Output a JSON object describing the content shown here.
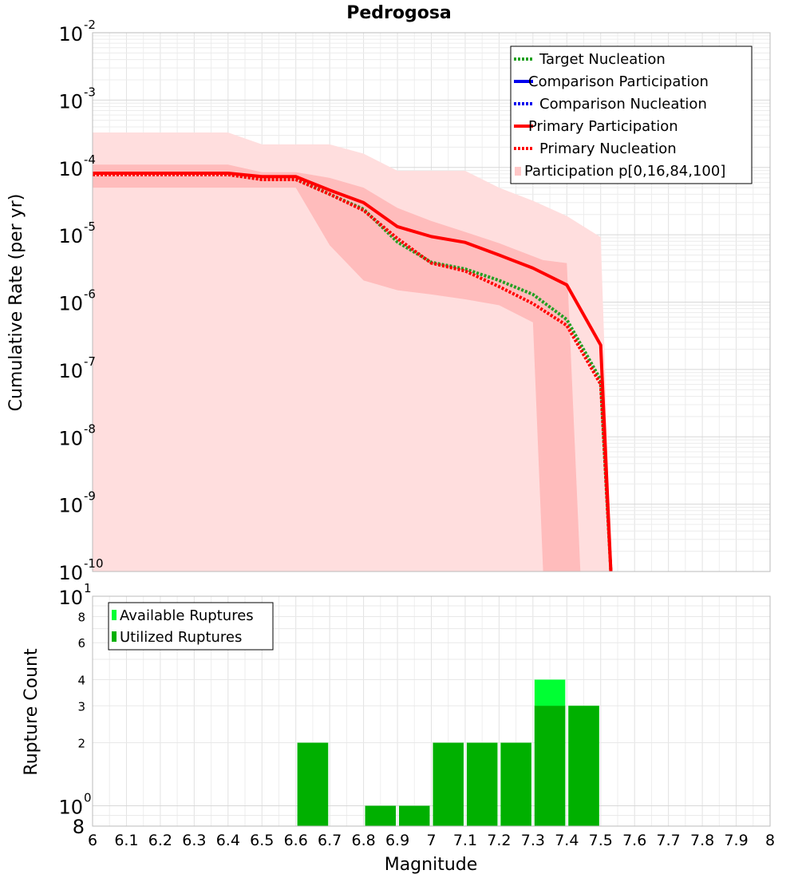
{
  "chart_data": [
    {
      "type": "line",
      "title": "Pedrogosa",
      "ylabel": "Cumulative Rate (per yr)",
      "yscale": "log",
      "ylim": [
        1e-10,
        0.01
      ],
      "xlim": [
        6,
        8
      ],
      "y_tick_labels": [
        {
          "value": 0.01,
          "base": "10",
          "exp": "-2"
        },
        {
          "value": 0.001,
          "base": "10",
          "exp": "-3"
        },
        {
          "value": 0.0001,
          "base": "10",
          "exp": "-4"
        },
        {
          "value": 1e-05,
          "base": "10",
          "exp": "-5"
        },
        {
          "value": 1e-06,
          "base": "10",
          "exp": "-6"
        },
        {
          "value": 1e-07,
          "base": "10",
          "exp": "-7"
        },
        {
          "value": 1e-08,
          "base": "10",
          "exp": "-8"
        },
        {
          "value": 1e-09,
          "base": "10",
          "exp": "-9"
        },
        {
          "value": 1e-10,
          "base": "10",
          "exp": "-10"
        }
      ],
      "legend_position": "top-right",
      "bands": [
        {
          "name": "Participation p[0,16,84,100] outer",
          "color": "#ffdede",
          "x": [
            6,
            6.4,
            6.5,
            6.6,
            6.7,
            6.8,
            6.9,
            7.0,
            7.1,
            7.2,
            7.3,
            7.4,
            7.5,
            7.51,
            7.53
          ],
          "low": [
            1e-10,
            1e-10,
            1e-10,
            1e-10,
            1e-10,
            1e-10,
            1e-10,
            1e-10,
            1e-10,
            1e-10,
            1e-10,
            1e-10,
            1e-10,
            1e-10,
            1e-10
          ],
          "high": [
            0.00033,
            0.00033,
            0.00022,
            0.00022,
            0.00022,
            0.00016,
            8.9e-05,
            8.9e-05,
            8.9e-05,
            5e-05,
            3.2e-05,
            1.9e-05,
            9.2e-06,
            3e-07,
            1e-10
          ]
        },
        {
          "name": "Participation p[0,16,84,100] inner",
          "color": "#ffbcbc",
          "x": [
            6,
            6.4,
            6.5,
            6.6,
            6.7,
            6.8,
            6.9,
            7.0,
            7.1,
            7.2,
            7.3,
            7.33,
            7.4,
            7.44
          ],
          "low": [
            5e-05,
            5e-05,
            5e-05,
            5e-05,
            7e-06,
            2.1e-06,
            1.5e-06,
            1.3e-06,
            1.1e-06,
            9e-07,
            5e-07,
            1e-10,
            1e-10,
            1e-10
          ],
          "high": [
            0.00011,
            0.00011,
            8.5e-05,
            8.5e-05,
            7e-05,
            5e-05,
            2.5e-05,
            1.6e-05,
            1.1e-05,
            7.5e-06,
            4.8e-06,
            4.2e-06,
            3.8e-06,
            1e-10
          ]
        }
      ],
      "series": [
        {
          "name": "Target Nucleation",
          "color": "#22a022",
          "style": "dotted",
          "x": [
            6,
            6.4,
            6.5,
            6.6,
            6.7,
            6.8,
            6.9,
            7.0,
            7.1,
            7.2,
            7.3,
            7.4,
            7.5,
            7.53
          ],
          "values": [
            8e-05,
            8e-05,
            6.8e-05,
            6.8e-05,
            4e-05,
            2.4e-05,
            7.8e-06,
            3.9e-06,
            3.1e-06,
            2.1e-06,
            1.3e-06,
            5.5e-07,
            7e-08,
            1e-10
          ]
        },
        {
          "name": "Comparison Participation",
          "color": "#0000ee",
          "style": "solid",
          "x": [],
          "values": []
        },
        {
          "name": "Comparison Nucleation",
          "color": "#0000ee",
          "style": "dotted",
          "x": [],
          "values": []
        },
        {
          "name": "Primary Participation",
          "color": "#ff0000",
          "style": "solid",
          "x": [
            6,
            6.4,
            6.5,
            6.6,
            6.7,
            6.8,
            6.9,
            7.0,
            7.1,
            7.2,
            7.3,
            7.4,
            7.5,
            7.53
          ],
          "values": [
            8.2e-05,
            8.2e-05,
            7.3e-05,
            7.3e-05,
            4.6e-05,
            3e-05,
            1.32e-05,
            9.4e-06,
            7.7e-06,
            5e-06,
            3.2e-06,
            1.8e-06,
            2.3e-07,
            1e-10
          ]
        },
        {
          "name": "Primary Nucleation",
          "color": "#ff0000",
          "style": "dotted",
          "x": [
            6,
            6.4,
            6.5,
            6.6,
            6.7,
            6.8,
            6.9,
            7.0,
            7.1,
            7.2,
            7.3,
            7.4,
            7.5,
            7.53
          ],
          "values": [
            7.8e-05,
            7.8e-05,
            6.6e-05,
            6.6e-05,
            4e-05,
            2.3e-05,
            8.8e-06,
            3.8e-06,
            2.9e-06,
            1.7e-06,
            9.5e-07,
            4.5e-07,
            6e-08,
            1e-10
          ]
        }
      ],
      "legend": [
        {
          "label": "Target Nucleation",
          "color": "#22a022",
          "style": "dotted"
        },
        {
          "label": "Comparison Participation",
          "color": "#0000ee",
          "style": "solid"
        },
        {
          "label": "Comparison Nucleation",
          "color": "#0000ee",
          "style": "dotted"
        },
        {
          "label": "Primary Participation",
          "color": "#ff0000",
          "style": "solid"
        },
        {
          "label": "Primary Nucleation",
          "color": "#ff0000",
          "style": "dotted"
        },
        {
          "label": "Participation p[0,16,84,100]",
          "color": "#ffdede",
          "style": "box"
        }
      ]
    },
    {
      "type": "bar",
      "xlabel": "Magnitude",
      "ylabel": "Rupture Count",
      "yscale": "log",
      "ylim": [
        0.8,
        10
      ],
      "xlim": [
        6,
        8
      ],
      "x_tick_labels": [
        "6",
        "6.1",
        "6.2",
        "6.3",
        "6.4",
        "6.5",
        "6.6",
        "6.7",
        "6.8",
        "6.9",
        "7",
        "7.1",
        "7.2",
        "7.3",
        "7.4",
        "7.5",
        "7.6",
        "7.7",
        "7.8",
        "7.9",
        "8"
      ],
      "y_tick_labels": [
        {
          "value": 10,
          "base": "10",
          "exp": "1",
          "major": true
        },
        {
          "value": 8,
          "label": "8"
        },
        {
          "value": 6,
          "label": "6"
        },
        {
          "value": 4,
          "label": "4"
        },
        {
          "value": 3,
          "label": "3"
        },
        {
          "value": 2,
          "label": "2"
        },
        {
          "value": 1,
          "base": "10",
          "exp": "0",
          "major": true
        },
        {
          "value": 0.8,
          "label": "8",
          "major": true
        }
      ],
      "bin_width": 0.1,
      "legend_position": "top-left",
      "series": [
        {
          "name": "Available Ruptures",
          "color": "#00ff33",
          "x": [
            6.65,
            6.85,
            6.95,
            7.05,
            7.15,
            7.25,
            7.35,
            7.45
          ],
          "values": [
            2,
            1,
            1,
            2,
            2,
            2,
            4,
            3
          ]
        },
        {
          "name": "Utilized Ruptures",
          "color": "#00b000",
          "x": [
            6.65,
            6.85,
            6.95,
            7.05,
            7.15,
            7.25,
            7.35,
            7.45
          ],
          "values": [
            2,
            1,
            1,
            2,
            2,
            2,
            3,
            3
          ]
        }
      ],
      "legend": [
        {
          "label": "Available Ruptures",
          "color": "#00ff33"
        },
        {
          "label": "Utilized Ruptures",
          "color": "#00b000"
        }
      ]
    }
  ]
}
